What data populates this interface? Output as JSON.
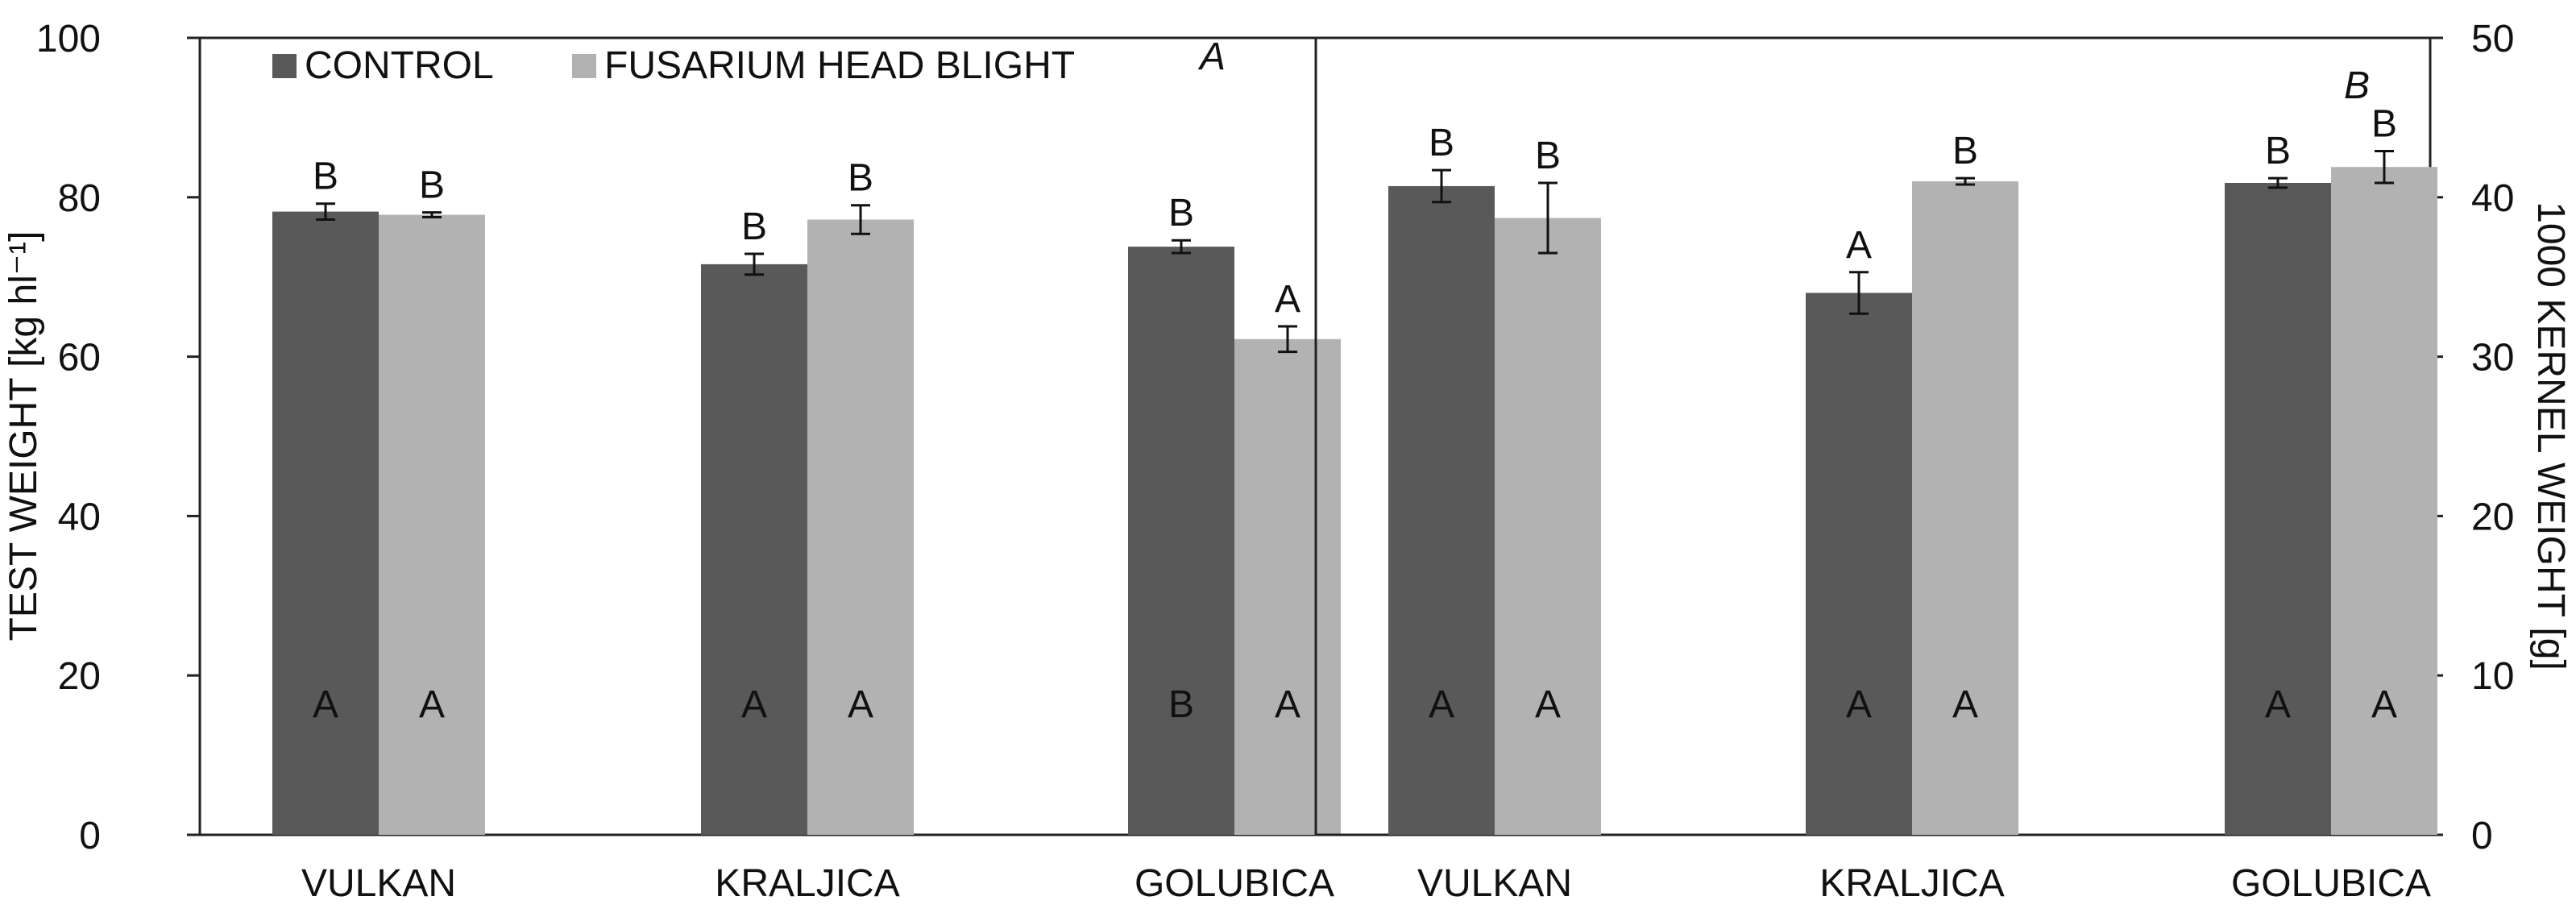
{
  "legend": [
    {
      "label": "CONTROL",
      "color": "#595959"
    },
    {
      "label": "FUSARIUM HEAD BLIGHT",
      "color": "#b2b2b2"
    }
  ],
  "chart_data": [
    {
      "type": "bar",
      "panel_label": "A",
      "ylabel": "TEST WEIGHT [kg hl⁻¹]",
      "ylim": [
        0,
        100
      ],
      "yticks": [
        0,
        20,
        40,
        60,
        80,
        100
      ],
      "y_axis_side": "left",
      "categories": [
        "VULKAN",
        "KRALJICA",
        "GOLUBICA"
      ],
      "series": [
        {
          "name": "CONTROL",
          "color": "#595959",
          "values": [
            78.2,
            71.6,
            73.8
          ],
          "errors": [
            1.0,
            1.3,
            0.8
          ],
          "top_letters": [
            "B",
            "B",
            "B"
          ],
          "bottom_letters": [
            "A",
            "A",
            "B"
          ]
        },
        {
          "name": "FUSARIUM HEAD BLIGHT",
          "color": "#b2b2b2",
          "values": [
            77.8,
            77.2,
            62.2
          ],
          "errors": [
            0.3,
            1.8,
            1.6
          ],
          "top_letters": [
            "B",
            "B",
            "A"
          ],
          "bottom_letters": [
            "A",
            "A",
            "A"
          ]
        }
      ]
    },
    {
      "type": "bar",
      "panel_label": "B",
      "ylabel": "1000 KERNEL WEIGHT [g]",
      "ylim": [
        0,
        50
      ],
      "yticks": [
        0,
        10,
        20,
        30,
        40,
        50
      ],
      "y_axis_side": "right",
      "categories": [
        "VULKAN",
        "KRALJICA",
        "GOLUBICA"
      ],
      "series": [
        {
          "name": "CONTROL",
          "color": "#595959",
          "values": [
            40.7,
            34.0,
            40.9
          ],
          "errors": [
            1.0,
            1.3,
            0.3
          ],
          "top_letters": [
            "B",
            "A",
            "B"
          ],
          "bottom_letters": [
            "A",
            "A",
            "A"
          ]
        },
        {
          "name": "FUSARIUM HEAD BLIGHT",
          "color": "#b2b2b2",
          "values": [
            38.7,
            41.0,
            41.9
          ],
          "errors": [
            2.2,
            0.2,
            1.0
          ],
          "top_letters": [
            "B",
            "B",
            "B"
          ],
          "bottom_letters": [
            "A",
            "A",
            "A"
          ]
        }
      ]
    }
  ]
}
